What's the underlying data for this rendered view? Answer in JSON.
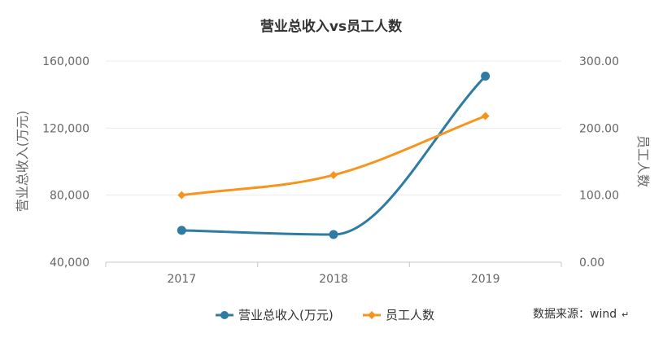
{
  "chart_data": {
    "type": "line",
    "title": "营业总收入vs员工人数",
    "categories": [
      "2017",
      "2018",
      "2019"
    ],
    "left_axis": {
      "label": "营业总收入(万元)",
      "range": [
        40000,
        160000
      ],
      "ticks": [
        "40,000",
        "80,000",
        "120,000",
        "160,000"
      ]
    },
    "right_axis": {
      "label": "员工人数",
      "range": [
        0,
        300
      ],
      "ticks": [
        "0.00",
        "100.00",
        "200.00",
        "300.00"
      ]
    },
    "series": [
      {
        "name": "营业总收入(万元)",
        "axis": "left",
        "color": "#2e7ba3",
        "marker": "circle",
        "values": [
          59000,
          56500,
          151000
        ]
      },
      {
        "name": "员工人数",
        "axis": "right",
        "color": "#f7941d",
        "marker": "diamond",
        "values": [
          100,
          130,
          218
        ]
      }
    ],
    "grid": true,
    "legend_position": "bottom"
  },
  "source_note": "数据来源：wind",
  "return_mark": "↵"
}
